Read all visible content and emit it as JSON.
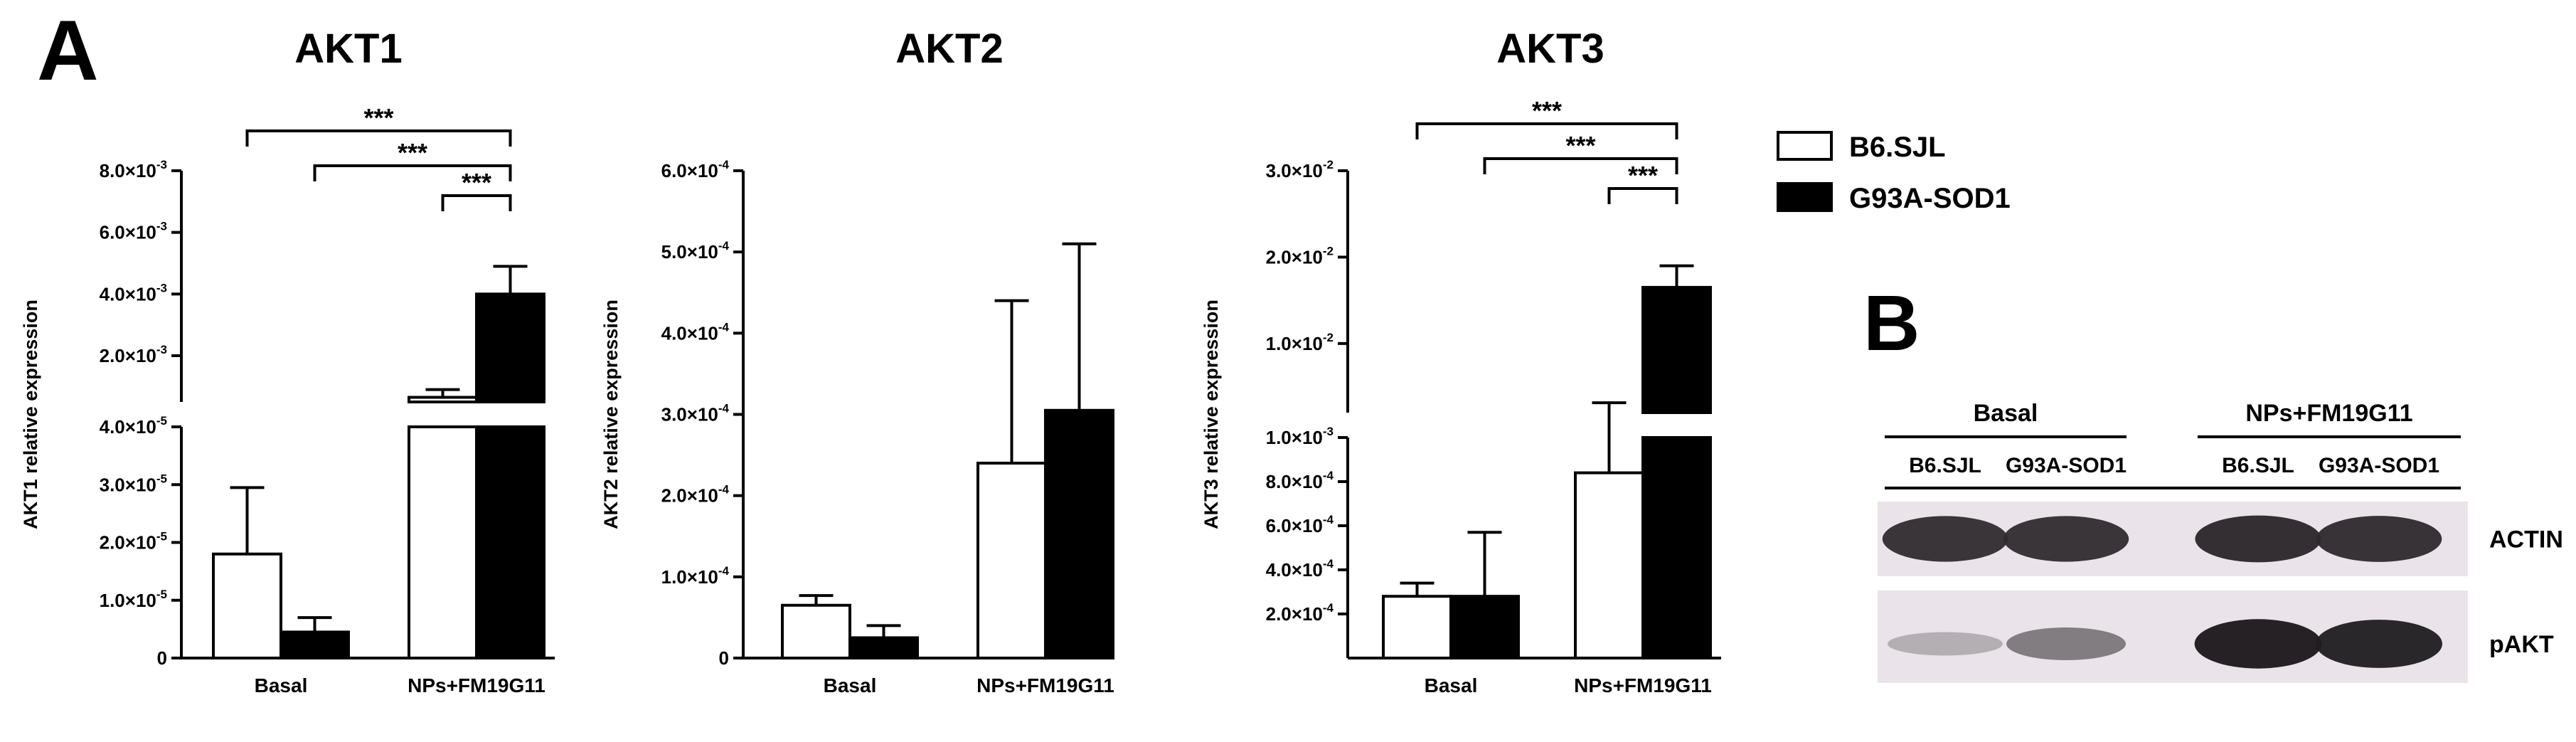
{
  "panel_a_label": "A",
  "panel_b_label": "B",
  "legend": [
    {
      "label": "B6.SJL",
      "color": "#ffffff"
    },
    {
      "label": "G93A-SOD1",
      "color": "#000000"
    }
  ],
  "significance_label": "***",
  "chart_data": [
    {
      "type": "bar",
      "title": "AKT1",
      "ylabel": "AKT1 relative expression",
      "categories": [
        "Basal",
        "NPs+FM19G11"
      ],
      "broken_axis": true,
      "lower_ylim": [
        0,
        4e-05
      ],
      "lower_ticks": [
        {
          "value": 0,
          "label": "0"
        },
        {
          "value": 1e-05,
          "label": "1.0×10",
          "exp": "-5"
        },
        {
          "value": 2e-05,
          "label": "2.0×10",
          "exp": "-5"
        },
        {
          "value": 3e-05,
          "label": "3.0×10",
          "exp": "-5"
        },
        {
          "value": 4e-05,
          "label": "4.0×10",
          "exp": "-5"
        }
      ],
      "upper_ylim": [
        0.0005,
        0.008
      ],
      "upper_ticks": [
        {
          "value": 0.002,
          "label": "2.0×10",
          "exp": "-3"
        },
        {
          "value": 0.004,
          "label": "4.0×10",
          "exp": "-3"
        },
        {
          "value": 0.006,
          "label": "6.0×10",
          "exp": "-3"
        },
        {
          "value": 0.008,
          "label": "8.0×10",
          "exp": "-3"
        }
      ],
      "series": [
        {
          "name": "B6.SJL",
          "values": [
            1.8e-05,
            0.00065
          ],
          "errors": [
            1.15e-05,
            0.00025
          ]
        },
        {
          "name": "G93A-SOD1",
          "values": [
            4.5e-06,
            0.004
          ],
          "errors": [
            2.5e-06,
            0.0009
          ]
        }
      ],
      "significance": [
        {
          "from": [
            1,
            0
          ],
          "to": [
            1,
            1
          ],
          "label": "***"
        },
        {
          "from": [
            0,
            1
          ],
          "to": [
            1,
            1
          ],
          "label": "***"
        },
        {
          "from": [
            0,
            0
          ],
          "to": [
            1,
            1
          ],
          "label": "***"
        }
      ]
    },
    {
      "type": "bar",
      "title": "AKT2",
      "ylabel": "AKT2 relative expression",
      "categories": [
        "Basal",
        "NPs+FM19G11"
      ],
      "broken_axis": false,
      "ylim": [
        0,
        0.0006
      ],
      "ticks": [
        {
          "value": 0,
          "label": "0"
        },
        {
          "value": 0.0001,
          "label": "1.0×10",
          "exp": "-4"
        },
        {
          "value": 0.0002,
          "label": "2.0×10",
          "exp": "-4"
        },
        {
          "value": 0.0003,
          "label": "3.0×10",
          "exp": "-4"
        },
        {
          "value": 0.0004,
          "label": "4.0×10",
          "exp": "-4"
        },
        {
          "value": 0.0005,
          "label": "5.0×10",
          "exp": "-4"
        },
        {
          "value": 0.0006,
          "label": "6.0×10",
          "exp": "-4"
        }
      ],
      "series": [
        {
          "name": "B6.SJL",
          "values": [
            6.5e-05,
            0.00024
          ],
          "errors": [
            1.2e-05,
            0.0002
          ]
        },
        {
          "name": "G93A-SOD1",
          "values": [
            2.5e-05,
            0.000305
          ],
          "errors": [
            1.5e-05,
            0.000205
          ]
        }
      ],
      "significance": []
    },
    {
      "type": "bar",
      "title": "AKT3",
      "ylabel": "AKT3 relative expression",
      "categories": [
        "Basal",
        "NPs+FM19G11"
      ],
      "broken_axis": true,
      "lower_ylim": [
        0,
        0.001
      ],
      "lower_ticks": [
        {
          "value": 0.0002,
          "label": "2.0×10",
          "exp": "-4"
        },
        {
          "value": 0.0004,
          "label": "4.0×10",
          "exp": "-4"
        },
        {
          "value": 0.0006,
          "label": "6.0×10",
          "exp": "-4"
        },
        {
          "value": 0.0008,
          "label": "8.0×10",
          "exp": "-4"
        },
        {
          "value": 0.001,
          "label": "1.0×10",
          "exp": "-3"
        }
      ],
      "upper_ylim": [
        0.002,
        0.03
      ],
      "upper_ticks": [
        {
          "value": 0.01,
          "label": "1.0×10",
          "exp": "-2"
        },
        {
          "value": 0.02,
          "label": "2.0×10",
          "exp": "-2"
        },
        {
          "value": 0.03,
          "label": "3.0×10",
          "exp": "-2"
        }
      ],
      "series": [
        {
          "name": "B6.SJL",
          "values": [
            0.00028,
            0.00084
          ],
          "errors": [
            6e-05,
            0.0023
          ]
        },
        {
          "name": "G93A-SOD1",
          "values": [
            0.00028,
            0.0165
          ],
          "errors": [
            0.00029,
            0.0025
          ]
        }
      ],
      "significance": [
        {
          "from": [
            1,
            0
          ],
          "to": [
            1,
            1
          ],
          "label": "***"
        },
        {
          "from": [
            0,
            1
          ],
          "to": [
            1,
            1
          ],
          "label": "***"
        },
        {
          "from": [
            0,
            0
          ],
          "to": [
            1,
            1
          ],
          "label": "***"
        }
      ]
    }
  ],
  "western_blot": {
    "group_labels": [
      "Basal",
      "NPs+FM19G11"
    ],
    "lane_labels": [
      "B6.SJL",
      "G93A-SOD1",
      "B6.SJL",
      "G93A-SOD1"
    ],
    "rows": [
      {
        "label": "ACTIN",
        "intensities": [
          0.85,
          0.85,
          0.88,
          0.86
        ]
      },
      {
        "label": "pAKT",
        "intensities": [
          0.25,
          0.5,
          0.95,
          0.92
        ]
      }
    ]
  }
}
